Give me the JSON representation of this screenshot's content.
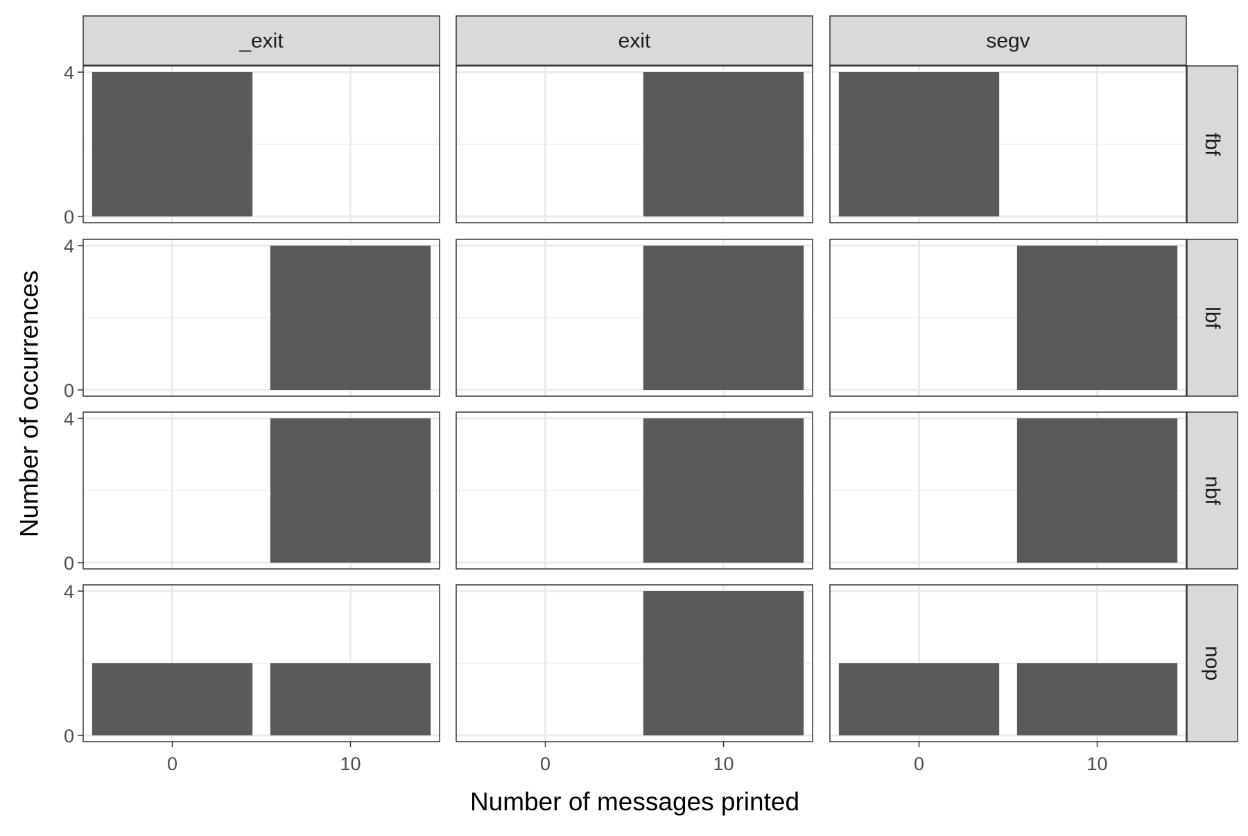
{
  "chart_data": {
    "type": "bar",
    "facet_layout": "grid",
    "columns": [
      "_exit",
      "exit",
      "segv"
    ],
    "rows": [
      "fbf",
      "lbf",
      "nbf",
      "nop"
    ],
    "xlabel": "Number of messages printed",
    "ylabel": "Number of occurrences",
    "x_ticks": [
      0,
      10
    ],
    "y_ticks": [
      0,
      4
    ],
    "xlim": [
      -5,
      15
    ],
    "ylim": [
      0,
      4
    ],
    "bin_width": 9,
    "bar_color": "#595959",
    "strip_fill": "#d9d9d9",
    "grid": true,
    "panels": [
      {
        "row": "fbf",
        "col": "_exit",
        "bars": [
          {
            "x": 0,
            "value": 4
          }
        ]
      },
      {
        "row": "fbf",
        "col": "exit",
        "bars": [
          {
            "x": 10,
            "value": 4
          }
        ]
      },
      {
        "row": "fbf",
        "col": "segv",
        "bars": [
          {
            "x": 0,
            "value": 4
          }
        ]
      },
      {
        "row": "lbf",
        "col": "_exit",
        "bars": [
          {
            "x": 10,
            "value": 4
          }
        ]
      },
      {
        "row": "lbf",
        "col": "exit",
        "bars": [
          {
            "x": 10,
            "value": 4
          }
        ]
      },
      {
        "row": "lbf",
        "col": "segv",
        "bars": [
          {
            "x": 10,
            "value": 4
          }
        ]
      },
      {
        "row": "nbf",
        "col": "_exit",
        "bars": [
          {
            "x": 10,
            "value": 4
          }
        ]
      },
      {
        "row": "nbf",
        "col": "exit",
        "bars": [
          {
            "x": 10,
            "value": 4
          }
        ]
      },
      {
        "row": "nbf",
        "col": "segv",
        "bars": [
          {
            "x": 10,
            "value": 4
          }
        ]
      },
      {
        "row": "nop",
        "col": "_exit",
        "bars": [
          {
            "x": 0,
            "value": 2
          },
          {
            "x": 10,
            "value": 2
          }
        ]
      },
      {
        "row": "nop",
        "col": "exit",
        "bars": [
          {
            "x": 10,
            "value": 4
          }
        ]
      },
      {
        "row": "nop",
        "col": "segv",
        "bars": [
          {
            "x": 0,
            "value": 2
          },
          {
            "x": 10,
            "value": 2
          }
        ]
      }
    ]
  }
}
